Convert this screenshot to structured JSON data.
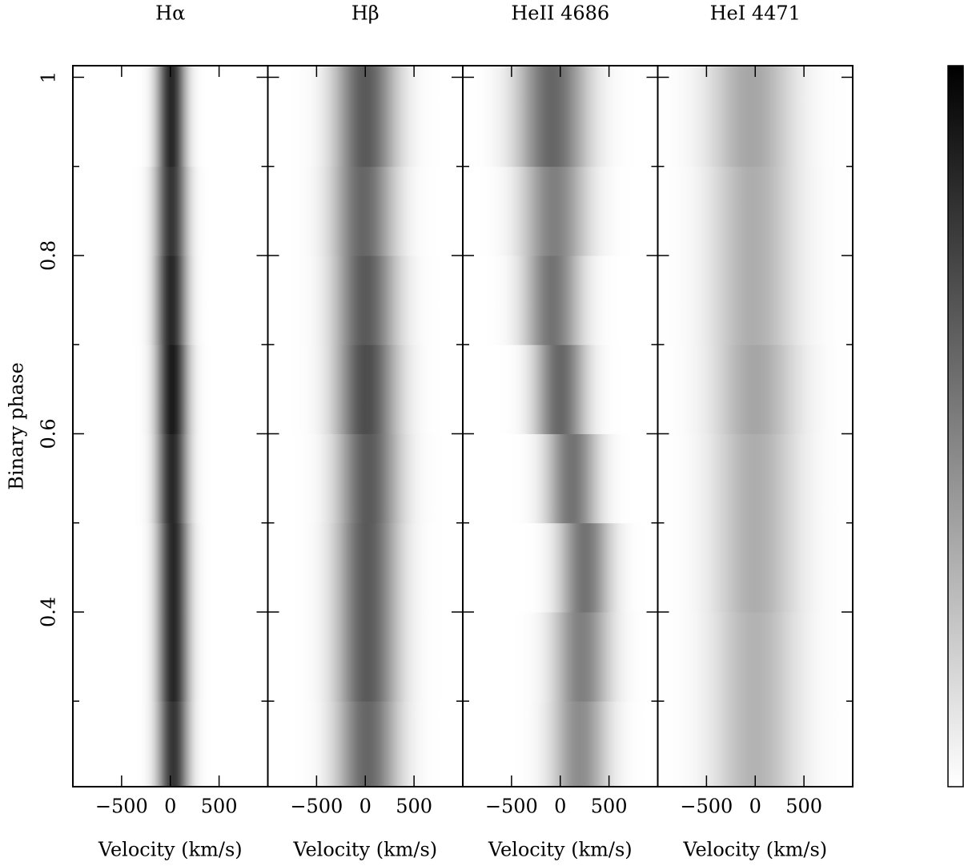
{
  "chart_data": [
    {
      "type": "heatmap",
      "title": "Hα",
      "xlabel": "Velocity (km/s)",
      "ylabel": "Binary phase",
      "xlim": [
        -1000,
        1000
      ],
      "xticks": [
        {
          "value": -500,
          "label": "−500"
        },
        0,
        500
      ],
      "ylim": [
        0.204,
        1.013
      ],
      "yticks": [
        0.4,
        0.6,
        0.8,
        1
      ],
      "yminor": [
        0.3,
        0.5,
        0.7,
        0.9
      ],
      "phase": [
        0.25,
        0.35,
        0.45,
        0.55,
        0.65,
        0.75,
        0.85,
        0.95
      ],
      "center": [
        30,
        30,
        30,
        20,
        20,
        10,
        10,
        10
      ],
      "width": [
        110,
        110,
        110,
        110,
        110,
        110,
        110,
        100
      ],
      "peak": [
        0.8,
        0.85,
        0.85,
        0.85,
        0.9,
        0.85,
        0.8,
        0.85
      ]
    },
    {
      "type": "heatmap",
      "title": "Hβ",
      "xlabel": "Velocity (km/s)",
      "xlim": [
        -1000,
        1000
      ],
      "xticks": [
        {
          "value": -500,
          "label": "−500"
        },
        0,
        500
      ],
      "ylim": [
        0.204,
        1.013
      ],
      "yticks": [
        0.4,
        0.6,
        0.8,
        1
      ],
      "yminor": [
        0.3,
        0.5,
        0.7,
        0.9
      ],
      "phase": [
        0.25,
        0.35,
        0.45,
        0.55,
        0.65,
        0.75,
        0.85,
        0.95
      ],
      "center": [
        20,
        20,
        20,
        30,
        10,
        0,
        -20,
        0
      ],
      "width": [
        220,
        220,
        220,
        220,
        220,
        220,
        220,
        220
      ],
      "peak": [
        0.6,
        0.65,
        0.65,
        0.65,
        0.7,
        0.65,
        0.6,
        0.65
      ]
    },
    {
      "type": "heatmap",
      "title": "HeII  4686",
      "xlabel": "Velocity (km/s)",
      "xlim": [
        -1000,
        1000
      ],
      "xticks": [
        {
          "value": -500,
          "label": "−500"
        },
        0,
        500
      ],
      "ylim": [
        0.204,
        1.013
      ],
      "yticks": [
        0.4,
        0.6,
        0.8,
        1
      ],
      "yminor": [
        0.3,
        0.5,
        0.7,
        0.9
      ],
      "phase": [
        0.25,
        0.35,
        0.45,
        0.55,
        0.65,
        0.75,
        0.85,
        0.95
      ],
      "center": [
        200,
        220,
        250,
        120,
        0,
        -80,
        -60,
        -80
      ],
      "width": [
        200,
        200,
        180,
        180,
        180,
        200,
        230,
        250
      ],
      "peak": [
        0.45,
        0.5,
        0.55,
        0.55,
        0.6,
        0.55,
        0.5,
        0.6
      ]
    },
    {
      "type": "heatmap",
      "title": "HeI  4471",
      "xlabel": "Velocity (km/s)",
      "xlim": [
        -1000,
        1000
      ],
      "xticks": [
        {
          "value": -500,
          "label": "−500"
        },
        0,
        500
      ],
      "ylim": [
        0.204,
        1.013
      ],
      "yticks": [
        0.4,
        0.6,
        0.8,
        1
      ],
      "yminor": [
        0.3,
        0.5,
        0.7,
        0.9
      ],
      "phase": [
        0.25,
        0.35,
        0.45,
        0.55,
        0.65,
        0.75,
        0.85,
        0.95
      ],
      "center": [
        0,
        0,
        0,
        0,
        0,
        -20,
        -20,
        -40
      ],
      "width": [
        300,
        300,
        300,
        300,
        300,
        300,
        300,
        300
      ],
      "peak": [
        0.3,
        0.3,
        0.32,
        0.32,
        0.35,
        0.32,
        0.32,
        0.35
      ]
    }
  ]
}
